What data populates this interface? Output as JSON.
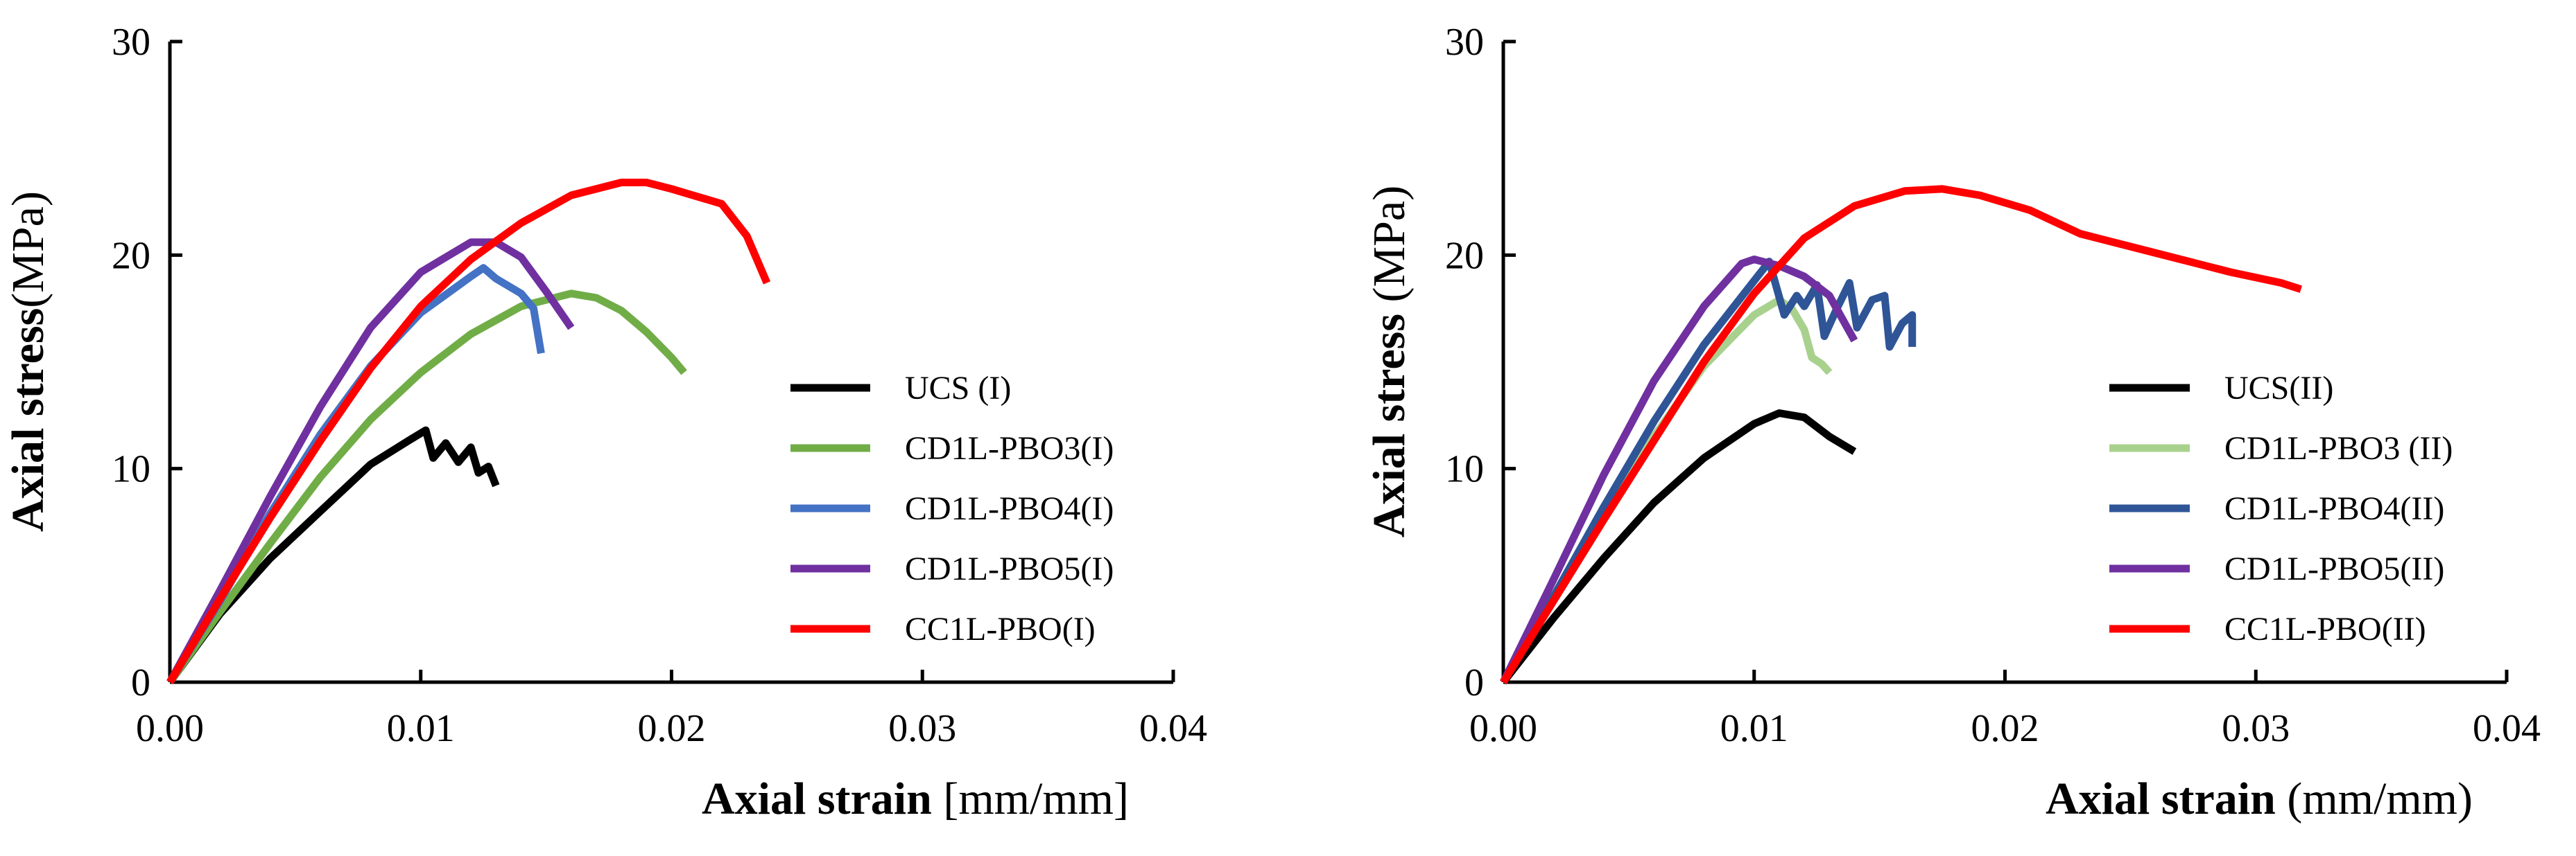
{
  "figure": {
    "panel_count": 2
  },
  "chart_data": [
    {
      "type": "line",
      "panel": "left",
      "title": "",
      "xlabel_bold": "Axial strain",
      "xlabel_unit": " [mm/mm]",
      "ylabel_bold": "Axial stress",
      "ylabel_unit": "(MPa)",
      "xlim": [
        0,
        0.04
      ],
      "ylim": [
        0,
        30
      ],
      "xticks": [
        0,
        0.01,
        0.02,
        0.03,
        0.04
      ],
      "xtick_labels": [
        "0.00",
        "0.01",
        "0.02",
        "0.03",
        "0.04"
      ],
      "yticks": [
        0,
        10,
        20,
        30
      ],
      "ytick_labels": [
        "0",
        "10",
        "20",
        "30"
      ],
      "grid": false,
      "legend_position": "right",
      "series": [
        {
          "name": "UCS (I)",
          "color": "#000000",
          "points": [
            [
              0,
              0
            ],
            [
              0.002,
              3.2
            ],
            [
              0.004,
              5.8
            ],
            [
              0.006,
              8.0
            ],
            [
              0.008,
              10.2
            ],
            [
              0.0095,
              11.3
            ],
            [
              0.0102,
              11.8
            ],
            [
              0.0105,
              10.5
            ],
            [
              0.011,
              11.2
            ],
            [
              0.0115,
              10.3
            ],
            [
              0.012,
              11.0
            ],
            [
              0.0123,
              9.8
            ],
            [
              0.0127,
              10.1
            ],
            [
              0.013,
              9.2
            ]
          ]
        },
        {
          "name": "CD1L-PBO3(I)",
          "color": "#70AD47",
          "points": [
            [
              0,
              0
            ],
            [
              0.002,
              3.3
            ],
            [
              0.004,
              6.5
            ],
            [
              0.006,
              9.6
            ],
            [
              0.008,
              12.3
            ],
            [
              0.01,
              14.5
            ],
            [
              0.012,
              16.3
            ],
            [
              0.014,
              17.6
            ],
            [
              0.016,
              18.2
            ],
            [
              0.017,
              18.0
            ],
            [
              0.018,
              17.4
            ],
            [
              0.019,
              16.4
            ],
            [
              0.02,
              15.2
            ],
            [
              0.0205,
              14.5
            ]
          ]
        },
        {
          "name": "CD1L-PBO4(I)",
          "color": "#4472C4",
          "points": [
            [
              0,
              0
            ],
            [
              0.002,
              3.8
            ],
            [
              0.004,
              7.9
            ],
            [
              0.006,
              11.6
            ],
            [
              0.008,
              14.8
            ],
            [
              0.01,
              17.3
            ],
            [
              0.012,
              19.0
            ],
            [
              0.0125,
              19.4
            ],
            [
              0.013,
              18.9
            ],
            [
              0.014,
              18.2
            ],
            [
              0.0145,
              17.5
            ],
            [
              0.0148,
              15.4
            ]
          ]
        },
        {
          "name": "CD1L-PBO5(I)",
          "color": "#7030A0",
          "points": [
            [
              0,
              0
            ],
            [
              0.002,
              4.3
            ],
            [
              0.004,
              8.7
            ],
            [
              0.006,
              12.9
            ],
            [
              0.008,
              16.6
            ],
            [
              0.01,
              19.2
            ],
            [
              0.012,
              20.6
            ],
            [
              0.013,
              20.6
            ],
            [
              0.014,
              19.9
            ],
            [
              0.015,
              18.3
            ],
            [
              0.016,
              16.6
            ]
          ]
        },
        {
          "name": "CC1L-PBO(I)",
          "color": "#FF0000",
          "points": [
            [
              0,
              0
            ],
            [
              0.002,
              3.9
            ],
            [
              0.004,
              7.7
            ],
            [
              0.006,
              11.3
            ],
            [
              0.008,
              14.7
            ],
            [
              0.01,
              17.6
            ],
            [
              0.012,
              19.8
            ],
            [
              0.014,
              21.5
            ],
            [
              0.016,
              22.8
            ],
            [
              0.018,
              23.4
            ],
            [
              0.019,
              23.4
            ],
            [
              0.02,
              23.1
            ],
            [
              0.022,
              22.4
            ],
            [
              0.023,
              20.9
            ],
            [
              0.0238,
              18.7
            ]
          ]
        }
      ]
    },
    {
      "type": "line",
      "panel": "right",
      "title": "",
      "xlabel_bold": "Axial strain",
      "xlabel_unit": " (mm/mm)",
      "ylabel_bold": "Axial stress",
      "ylabel_unit": " (MPa)",
      "xlim": [
        0,
        0.04
      ],
      "ylim": [
        0,
        30
      ],
      "xticks": [
        0,
        0.01,
        0.02,
        0.03,
        0.04
      ],
      "xtick_labels": [
        "0.00",
        "0.01",
        "0.02",
        "0.03",
        "0.04"
      ],
      "yticks": [
        0,
        10,
        20,
        30
      ],
      "ytick_labels": [
        "0",
        "10",
        "20",
        "30"
      ],
      "grid": false,
      "legend_position": "right",
      "series": [
        {
          "name": "UCS(II)",
          "color": "#000000",
          "points": [
            [
              0,
              0
            ],
            [
              0.002,
              3.0
            ],
            [
              0.004,
              5.8
            ],
            [
              0.006,
              8.4
            ],
            [
              0.008,
              10.5
            ],
            [
              0.01,
              12.1
            ],
            [
              0.011,
              12.6
            ],
            [
              0.012,
              12.4
            ],
            [
              0.013,
              11.5
            ],
            [
              0.014,
              10.8
            ]
          ]
        },
        {
          "name": "CD1L-PBO3 (II)",
          "color": "#A9D18E",
          "points": [
            [
              0,
              0
            ],
            [
              0.002,
              3.9
            ],
            [
              0.004,
              7.8
            ],
            [
              0.006,
              11.5
            ],
            [
              0.008,
              14.8
            ],
            [
              0.01,
              17.2
            ],
            [
              0.011,
              17.9
            ],
            [
              0.0115,
              17.5
            ],
            [
              0.012,
              16.5
            ],
            [
              0.0123,
              15.2
            ],
            [
              0.0127,
              14.9
            ],
            [
              0.013,
              14.5
            ]
          ]
        },
        {
          "name": "CD1L-PBO4(II)",
          "color": "#2F5597",
          "points": [
            [
              0,
              0
            ],
            [
              0.002,
              4.0
            ],
            [
              0.004,
              8.2
            ],
            [
              0.006,
              12.2
            ],
            [
              0.008,
              15.8
            ],
            [
              0.01,
              18.8
            ],
            [
              0.0106,
              19.7
            ],
            [
              0.0112,
              17.2
            ],
            [
              0.0117,
              18.1
            ],
            [
              0.012,
              17.6
            ],
            [
              0.0125,
              18.6
            ],
            [
              0.0128,
              16.2
            ],
            [
              0.0133,
              17.5
            ],
            [
              0.0138,
              18.7
            ],
            [
              0.0141,
              16.6
            ],
            [
              0.0147,
              17.9
            ],
            [
              0.0152,
              18.1
            ],
            [
              0.0154,
              15.7
            ],
            [
              0.0159,
              16.8
            ],
            [
              0.0163,
              17.2
            ],
            [
              0.0163,
              15.7
            ]
          ]
        },
        {
          "name": "CD1L-PBO5(II)",
          "color": "#7030A0",
          "points": [
            [
              0,
              0
            ],
            [
              0.002,
              4.8
            ],
            [
              0.004,
              9.7
            ],
            [
              0.006,
              14.1
            ],
            [
              0.008,
              17.6
            ],
            [
              0.0095,
              19.6
            ],
            [
              0.01,
              19.8
            ],
            [
              0.011,
              19.5
            ],
            [
              0.012,
              19.0
            ],
            [
              0.013,
              18.1
            ],
            [
              0.014,
              16.0
            ]
          ]
        },
        {
          "name": "CC1L-PBO(II)",
          "color": "#FF0000",
          "points": [
            [
              0,
              0
            ],
            [
              0.002,
              3.8
            ],
            [
              0.004,
              7.6
            ],
            [
              0.006,
              11.3
            ],
            [
              0.008,
              15.0
            ],
            [
              0.01,
              18.2
            ],
            [
              0.012,
              20.8
            ],
            [
              0.014,
              22.3
            ],
            [
              0.016,
              23.0
            ],
            [
              0.0175,
              23.1
            ],
            [
              0.019,
              22.8
            ],
            [
              0.021,
              22.1
            ],
            [
              0.023,
              21.0
            ],
            [
              0.025,
              20.4
            ],
            [
              0.027,
              19.8
            ],
            [
              0.029,
              19.2
            ],
            [
              0.031,
              18.7
            ],
            [
              0.0318,
              18.4
            ]
          ]
        }
      ]
    }
  ]
}
